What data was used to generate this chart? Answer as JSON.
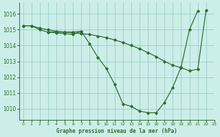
{
  "title": "Graphe pression niveau de la mer (hPa)",
  "bg_color": "#cceee8",
  "grid_color": "#99cccc",
  "line_color": "#2d6e2d",
  "xlim": [
    -0.5,
    23
  ],
  "ylim": [
    1009.3,
    1016.7
  ],
  "yticks": [
    1010,
    1011,
    1012,
    1013,
    1014,
    1015,
    1016
  ],
  "xticks": [
    0,
    1,
    2,
    3,
    4,
    5,
    6,
    7,
    8,
    9,
    10,
    11,
    12,
    13,
    14,
    15,
    16,
    17,
    18,
    19,
    20,
    21,
    22,
    23
  ],
  "series": [
    {
      "x": [
        0,
        1,
        2,
        3,
        4,
        5,
        6,
        7,
        8,
        9,
        10,
        11,
        12,
        13,
        14,
        15,
        16,
        17,
        18,
        19,
        20,
        21,
        22
      ],
      "y": [
        1015.25,
        1015.25,
        1015.1,
        1015.0,
        1014.9,
        1014.85,
        1014.8,
        1014.75,
        1014.7,
        1014.6,
        1014.5,
        1014.35,
        1014.2,
        1014.0,
        1013.8,
        1013.55,
        1013.3,
        1013.0,
        1012.75,
        1012.6,
        1012.4,
        1012.5,
        1016.25
      ]
    },
    {
      "x": [
        0,
        1,
        2,
        3,
        4,
        5,
        6,
        7,
        8,
        9,
        10,
        11,
        12,
        13,
        14,
        15,
        16,
        17,
        18,
        19,
        20,
        21,
        22
      ],
      "y": [
        1015.25,
        1015.25,
        1015.0,
        1014.85,
        1014.8,
        1014.75,
        1014.7,
        1014.9,
        1014.1,
        1013.25,
        1012.55,
        1011.55,
        1010.3,
        1010.15,
        1009.85,
        1009.75,
        1009.75,
        1010.4,
        1011.35,
        1012.65,
        1015.0,
        1016.2,
        null
      ]
    },
    {
      "x": [
        3,
        4,
        5,
        6,
        7
      ],
      "y": [
        1014.85,
        1014.85,
        1014.85,
        1014.85,
        1014.9
      ]
    }
  ]
}
